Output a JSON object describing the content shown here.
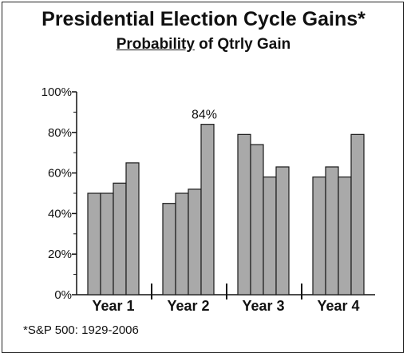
{
  "title": "Presidential Election Cycle Gains*",
  "subtitle_underlined": "Probability",
  "subtitle_rest": " of Qtrly Gain",
  "footnote": "*S&P 500: 1929-2006",
  "colors": {
    "bar_fill": "#a9a9a9",
    "bar_stroke": "#1a1a1a",
    "axis": "#111111"
  },
  "chart_data": {
    "type": "bar",
    "title": "Presidential Election Cycle Gains*",
    "subtitle": "Probability of Qtrly Gain",
    "categories": [
      "Year 1",
      "Year 2",
      "Year 3",
      "Year 4"
    ],
    "series_per_category": 4,
    "values": [
      [
        50,
        50,
        55,
        65
      ],
      [
        45,
        50,
        52,
        84
      ],
      [
        79,
        74,
        58,
        63
      ],
      [
        58,
        63,
        58,
        79
      ]
    ],
    "y_ticks": [
      "0%",
      "20%",
      "40%",
      "60%",
      "80%",
      "100%"
    ],
    "ylim": [
      0,
      100
    ],
    "annotations": [
      {
        "text": "84%",
        "category": "Year 2",
        "index": 3
      }
    ],
    "grid": false,
    "legend": "none"
  }
}
